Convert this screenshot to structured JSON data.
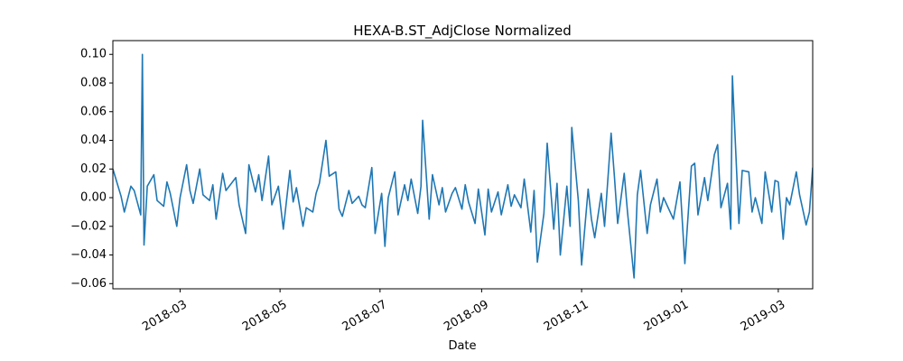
{
  "chart_data": {
    "type": "line",
    "title": "HEXA-B.ST_AdjClose Normalized",
    "x_label": "Date",
    "series": [
      {
        "color": "#1f77b4",
        "x": [
          "2018-01-19",
          "2018-01-24",
          "2018-01-26",
          "2018-01-30",
          "2018-02-01",
          "2018-02-05",
          "2018-02-06",
          "2018-02-07",
          "2018-02-09",
          "2018-02-13",
          "2018-02-15",
          "2018-02-19",
          "2018-02-21",
          "2018-02-23",
          "2018-02-27",
          "2018-03-01",
          "2018-03-05",
          "2018-03-07",
          "2018-03-09",
          "2018-03-13",
          "2018-03-15",
          "2018-03-19",
          "2018-03-21",
          "2018-03-23",
          "2018-03-27",
          "2018-03-29",
          "2018-04-04",
          "2018-04-06",
          "2018-04-10",
          "2018-04-12",
          "2018-04-16",
          "2018-04-18",
          "2018-04-20",
          "2018-04-24",
          "2018-04-26",
          "2018-04-30",
          "2018-05-03",
          "2018-05-07",
          "2018-05-09",
          "2018-05-11",
          "2018-05-15",
          "2018-05-17",
          "2018-05-21",
          "2018-05-23",
          "2018-05-25",
          "2018-05-29",
          "2018-05-31",
          "2018-06-04",
          "2018-06-06",
          "2018-06-08",
          "2018-06-12",
          "2018-06-14",
          "2018-06-18",
          "2018-06-20",
          "2018-06-22",
          "2018-06-26",
          "2018-06-28",
          "2018-07-02",
          "2018-07-04",
          "2018-07-06",
          "2018-07-10",
          "2018-07-12",
          "2018-07-16",
          "2018-07-18",
          "2018-07-20",
          "2018-07-24",
          "2018-07-26",
          "2018-07-27",
          "2018-07-31",
          "2018-08-02",
          "2018-08-06",
          "2018-08-08",
          "2018-08-10",
          "2018-08-14",
          "2018-08-16",
          "2018-08-20",
          "2018-08-22",
          "2018-08-24",
          "2018-08-28",
          "2018-08-30",
          "2018-09-03",
          "2018-09-05",
          "2018-09-07",
          "2018-09-11",
          "2018-09-13",
          "2018-09-17",
          "2018-09-19",
          "2018-09-21",
          "2018-09-25",
          "2018-09-27",
          "2018-10-01",
          "2018-10-03",
          "2018-10-05",
          "2018-10-09",
          "2018-10-11",
          "2018-10-15",
          "2018-10-17",
          "2018-10-19",
          "2018-10-23",
          "2018-10-25",
          "2018-10-26",
          "2018-10-30",
          "2018-11-01",
          "2018-11-05",
          "2018-11-07",
          "2018-11-09",
          "2018-11-13",
          "2018-11-15",
          "2018-11-19",
          "2018-11-21",
          "2018-11-23",
          "2018-11-27",
          "2018-11-29",
          "2018-12-03",
          "2018-12-05",
          "2018-12-07",
          "2018-12-11",
          "2018-12-13",
          "2018-12-17",
          "2018-12-19",
          "2018-12-21",
          "2018-12-27",
          "2018-12-31",
          "2019-01-03",
          "2019-01-07",
          "2019-01-09",
          "2019-01-11",
          "2019-01-15",
          "2019-01-17",
          "2019-01-21",
          "2019-01-23",
          "2019-01-25",
          "2019-01-29",
          "2019-01-31",
          "2019-02-01",
          "2019-02-05",
          "2019-02-07",
          "2019-02-11",
          "2019-02-13",
          "2019-02-15",
          "2019-02-19",
          "2019-02-21",
          "2019-02-25",
          "2019-02-27",
          "2019-03-01",
          "2019-03-04",
          "2019-03-06",
          "2019-03-08",
          "2019-03-12",
          "2019-03-14",
          "2019-03-18",
          "2019-03-20",
          "2019-03-22"
        ],
        "values": [
          0.02,
          0.001,
          -0.01,
          0.008,
          0.005,
          -0.012,
          0.1,
          -0.033,
          0.008,
          0.016,
          -0.002,
          -0.006,
          0.011,
          0.003,
          -0.02,
          0.0,
          0.023,
          0.005,
          -0.004,
          0.02,
          0.002,
          -0.002,
          0.009,
          -0.015,
          0.017,
          0.005,
          0.014,
          -0.005,
          -0.025,
          0.023,
          0.004,
          0.016,
          -0.002,
          0.029,
          -0.005,
          0.008,
          -0.022,
          0.019,
          -0.003,
          0.007,
          -0.02,
          -0.007,
          -0.01,
          0.003,
          0.01,
          0.04,
          0.015,
          0.018,
          -0.008,
          -0.013,
          0.005,
          -0.004,
          0.001,
          -0.005,
          -0.007,
          0.021,
          -0.025,
          0.003,
          -0.034,
          0.0,
          0.018,
          -0.012,
          0.009,
          -0.002,
          0.013,
          -0.011,
          0.008,
          0.054,
          -0.015,
          0.016,
          -0.005,
          0.007,
          -0.01,
          0.003,
          0.007,
          -0.008,
          0.009,
          -0.003,
          -0.018,
          0.006,
          -0.026,
          0.006,
          -0.01,
          0.004,
          -0.012,
          0.009,
          -0.006,
          0.002,
          -0.007,
          0.013,
          -0.024,
          0.005,
          -0.045,
          -0.011,
          0.038,
          -0.022,
          0.01,
          -0.04,
          0.008,
          -0.02,
          0.049,
          -0.002,
          -0.047,
          0.006,
          -0.015,
          -0.028,
          0.003,
          -0.02,
          0.045,
          0.015,
          -0.018,
          0.017,
          -0.01,
          -0.056,
          0.002,
          0.019,
          -0.025,
          -0.005,
          0.013,
          -0.01,
          0.0,
          -0.015,
          0.011,
          -0.046,
          0.022,
          0.024,
          -0.012,
          0.014,
          -0.002,
          0.03,
          0.037,
          -0.007,
          0.01,
          -0.022,
          0.085,
          -0.018,
          0.019,
          0.018,
          -0.01,
          0.0,
          -0.018,
          0.018,
          -0.01,
          0.012,
          0.011,
          -0.029,
          0.0,
          -0.005,
          0.018,
          0.002,
          -0.019,
          -0.01,
          0.021
        ]
      }
    ],
    "xlim": [
      "2018-01-19",
      "2019-03-22"
    ],
    "xticks": [
      {
        "value": "2018-03-01",
        "label": "2018-03"
      },
      {
        "value": "2018-05-01",
        "label": "2018-05"
      },
      {
        "value": "2018-07-01",
        "label": "2018-07"
      },
      {
        "value": "2018-09-01",
        "label": "2018-09"
      },
      {
        "value": "2018-11-01",
        "label": "2018-11"
      },
      {
        "value": "2019-01-01",
        "label": "2019-01"
      },
      {
        "value": "2019-03-01",
        "label": "2019-03"
      }
    ],
    "ylim": [
      -0.0636,
      0.1096
    ],
    "yticks": [
      {
        "value": -0.06,
        "label": "−0.06"
      },
      {
        "value": -0.04,
        "label": "−0.04"
      },
      {
        "value": -0.02,
        "label": "−0.02"
      },
      {
        "value": 0,
        "label": "0.00"
      },
      {
        "value": 0.02,
        "label": "0.02"
      },
      {
        "value": 0.04,
        "label": "0.04"
      },
      {
        "value": 0.06,
        "label": "0.06"
      },
      {
        "value": 0.08,
        "label": "0.08"
      },
      {
        "value": 0.1,
        "label": "0.10"
      }
    ],
    "grid": false
  }
}
